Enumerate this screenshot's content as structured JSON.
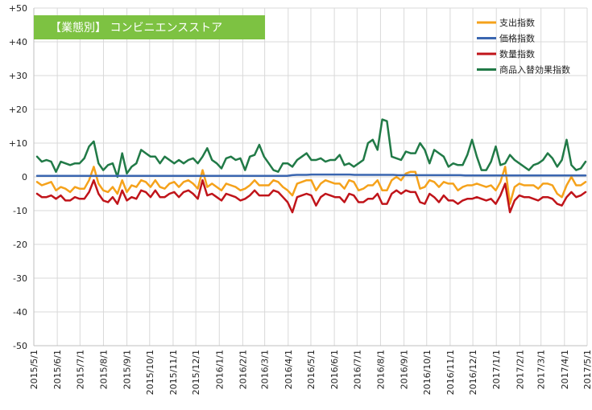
{
  "chart_data": {
    "type": "line",
    "title": "【業態別】 コンビニエンスストア",
    "xlabel": "",
    "ylabel": "",
    "ylim": [
      -50,
      50
    ],
    "grid": true,
    "legend_position": "top-right",
    "title_color": "#7dc242",
    "y_ticks": [
      {
        "value": 50,
        "label": "+50"
      },
      {
        "value": 40,
        "label": "+40"
      },
      {
        "value": 30,
        "label": "+30"
      },
      {
        "value": 20,
        "label": "+20"
      },
      {
        "value": 10,
        "label": "+10"
      },
      {
        "value": 0,
        "label": "0"
      },
      {
        "value": -10,
        "label": "-10"
      },
      {
        "value": -20,
        "label": "-20"
      },
      {
        "value": -30,
        "label": "-30"
      },
      {
        "value": -40,
        "label": "-40"
      },
      {
        "value": -50,
        "label": "-50"
      }
    ],
    "x_ticks": [
      "2015/5/1",
      "2015/6/1",
      "2015/7/1",
      "2015/8/1",
      "2015/9/1",
      "2015/10/1",
      "2015/11/1",
      "2015/12/1",
      "2016/1/1",
      "2016/2/1",
      "2016/3/1",
      "2016/4/1",
      "2016/5/1",
      "2016/6/1",
      "2016/7/1",
      "2016/8/1",
      "2016/9/1",
      "2016/10/1",
      "2016/11/1",
      "2016/12/1",
      "2017/1/1",
      "2017/2/1",
      "2017/3/1",
      "2017/4/1",
      "2017/5/1"
    ],
    "x_start": "2015/5/1",
    "x_end": "2017/5/1",
    "series": [
      {
        "name": "支出指数",
        "color": "#f5a21b",
        "values": [
          -1.5,
          -2.5,
          -2,
          -1.5,
          -4,
          -3,
          -3.5,
          -4.5,
          -3,
          -3.5,
          -3.5,
          -1,
          3,
          -2,
          -4,
          -4.5,
          -3,
          -5,
          -1,
          -4.5,
          -2.5,
          -3,
          -1,
          -1.5,
          -3,
          -1,
          -3,
          -3.5,
          -2,
          -1.5,
          -3,
          -1.5,
          -1,
          -2,
          -3.5,
          2,
          -3,
          -2,
          -3,
          -4,
          -2,
          -2.5,
          -3,
          -4,
          -3.5,
          -2.5,
          -1,
          -2.5,
          -2.5,
          -2.5,
          -1,
          -1.5,
          -3,
          -4,
          -5.5,
          -2,
          -1.5,
          -1,
          -1,
          -4,
          -2,
          -1,
          -1.5,
          -2,
          -2,
          -3.5,
          -1,
          -1.5,
          -4,
          -3.5,
          -2.5,
          -2.5,
          -1,
          -4,
          -4,
          -1,
          0,
          -1,
          1,
          1.5,
          1.5,
          -3.5,
          -3,
          -1,
          -1.5,
          -3,
          -1.5,
          -2,
          -2,
          -4,
          -3,
          -2.5,
          -2.5,
          -2,
          -2.5,
          -3,
          -2.5,
          -4,
          -1.5,
          3,
          -8,
          -3,
          -2,
          -2.5,
          -2.5,
          -2.5,
          -3.5,
          -2,
          -2,
          -2.5,
          -5,
          -6,
          -2.5,
          0,
          -2.5,
          -2.5,
          -1.5
        ]
      },
      {
        "name": "価格指数",
        "color": "#3a66b0",
        "values": [
          0.3,
          0.3,
          0.3,
          0.3,
          0.3,
          0.3,
          0.3,
          0.3,
          0.3,
          0.3,
          0.3,
          0.3,
          0.3,
          0.3,
          0.3,
          0.3,
          0.3,
          0.3,
          0.3,
          0.3,
          0.3,
          0.3,
          0.3,
          0.3,
          0.3,
          0.3,
          0.3,
          0.3,
          0.3,
          0.3,
          0.3,
          0.3,
          0.3,
          0.3,
          0.3,
          0.3,
          0.3,
          0.3,
          0.3,
          0.3,
          0.3,
          0.3,
          0.3,
          0.3,
          0.3,
          0.3,
          0.3,
          0.3,
          0.3,
          0.3,
          0.3,
          0.3,
          0.3,
          0.5,
          0.6,
          0.6,
          0.6,
          0.7,
          0.7,
          0.7,
          0.7,
          0.7,
          0.7,
          0.7,
          0.7,
          0.7,
          0.6,
          0.6,
          0.6,
          0.6,
          0.6,
          0.6,
          0.6,
          0.6,
          0.6,
          0.5,
          0.5,
          0.5,
          0.5,
          0.5,
          0.5,
          0.5,
          0.5,
          0.5,
          0.5,
          0.5,
          0.5,
          0.5,
          0.5,
          0.4,
          0.4,
          0.4,
          0.4,
          0.4,
          0.4,
          0.4,
          0.4,
          0.4,
          0.4,
          0.4,
          0.4,
          0.4,
          0.4,
          0.4,
          0.4,
          0.4,
          0.4,
          0.4,
          0.4,
          0.4,
          0.4,
          0.4,
          0.4,
          0.4,
          0.4
        ]
      },
      {
        "name": "数量指数",
        "color": "#c0141a",
        "values": [
          -5,
          -6,
          -6,
          -5.5,
          -6.5,
          -5.5,
          -7,
          -7,
          -6,
          -6.5,
          -6.5,
          -4.5,
          -1,
          -5,
          -7,
          -7.5,
          -6,
          -8,
          -4,
          -7,
          -6,
          -6.5,
          -4,
          -4.5,
          -6,
          -4,
          -6,
          -6,
          -5,
          -4.5,
          -6,
          -4.5,
          -4,
          -5,
          -6.5,
          -1,
          -5.5,
          -5,
          -6,
          -7,
          -5,
          -5.5,
          -6,
          -7,
          -6.5,
          -5.5,
          -4,
          -5.5,
          -5.5,
          -5.5,
          -4,
          -4.5,
          -6,
          -7.5,
          -10.5,
          -6,
          -5.5,
          -5,
          -5.5,
          -8.5,
          -6,
          -5,
          -5.5,
          -6,
          -6,
          -7.5,
          -5,
          -5.5,
          -7.5,
          -7.5,
          -6.5,
          -6.5,
          -5,
          -8,
          -8,
          -5,
          -4,
          -5,
          -4,
          -4.5,
          -4.5,
          -7.5,
          -8,
          -5,
          -6,
          -7.5,
          -5.5,
          -7,
          -7,
          -8,
          -7,
          -6.5,
          -6.5,
          -6,
          -6.5,
          -7,
          -6.5,
          -8,
          -5.5,
          -2,
          -10.5,
          -7,
          -5.5,
          -6,
          -6,
          -6.5,
          -7,
          -6,
          -6,
          -6.5,
          -8,
          -8.5,
          -6,
          -4.5,
          -6,
          -5.5,
          -4.5
        ]
      },
      {
        "name": "商品入替効果指数",
        "color": "#217a47",
        "values": [
          6,
          4.5,
          5,
          4.5,
          1.5,
          4.5,
          4,
          3.5,
          4,
          4,
          5.5,
          9,
          10.5,
          4,
          2,
          3.5,
          4,
          0,
          7,
          1,
          3,
          4,
          8,
          7,
          6,
          6,
          4,
          6,
          5,
          4,
          5,
          4,
          5,
          5.5,
          4,
          6,
          8.5,
          5,
          4,
          2.5,
          5.5,
          6,
          5,
          5.5,
          2,
          6,
          6.5,
          9.5,
          6,
          4,
          2,
          1.5,
          4,
          4,
          3,
          5,
          6,
          7,
          5,
          5,
          5.5,
          4.5,
          5,
          5,
          6.5,
          3.5,
          4,
          3,
          4,
          5,
          10,
          11,
          8,
          17,
          16.5,
          6,
          5.5,
          5,
          7.5,
          7,
          7,
          10,
          8,
          4,
          8,
          7,
          6,
          3,
          4,
          3.5,
          3.5,
          6.5,
          11,
          6,
          2,
          2,
          4.5,
          9,
          3.5,
          4,
          6.5,
          5,
          4,
          3,
          2,
          3.5,
          4,
          5,
          7,
          5.5,
          3,
          5,
          11,
          3.5,
          2,
          2.5,
          4.5
        ]
      }
    ]
  }
}
